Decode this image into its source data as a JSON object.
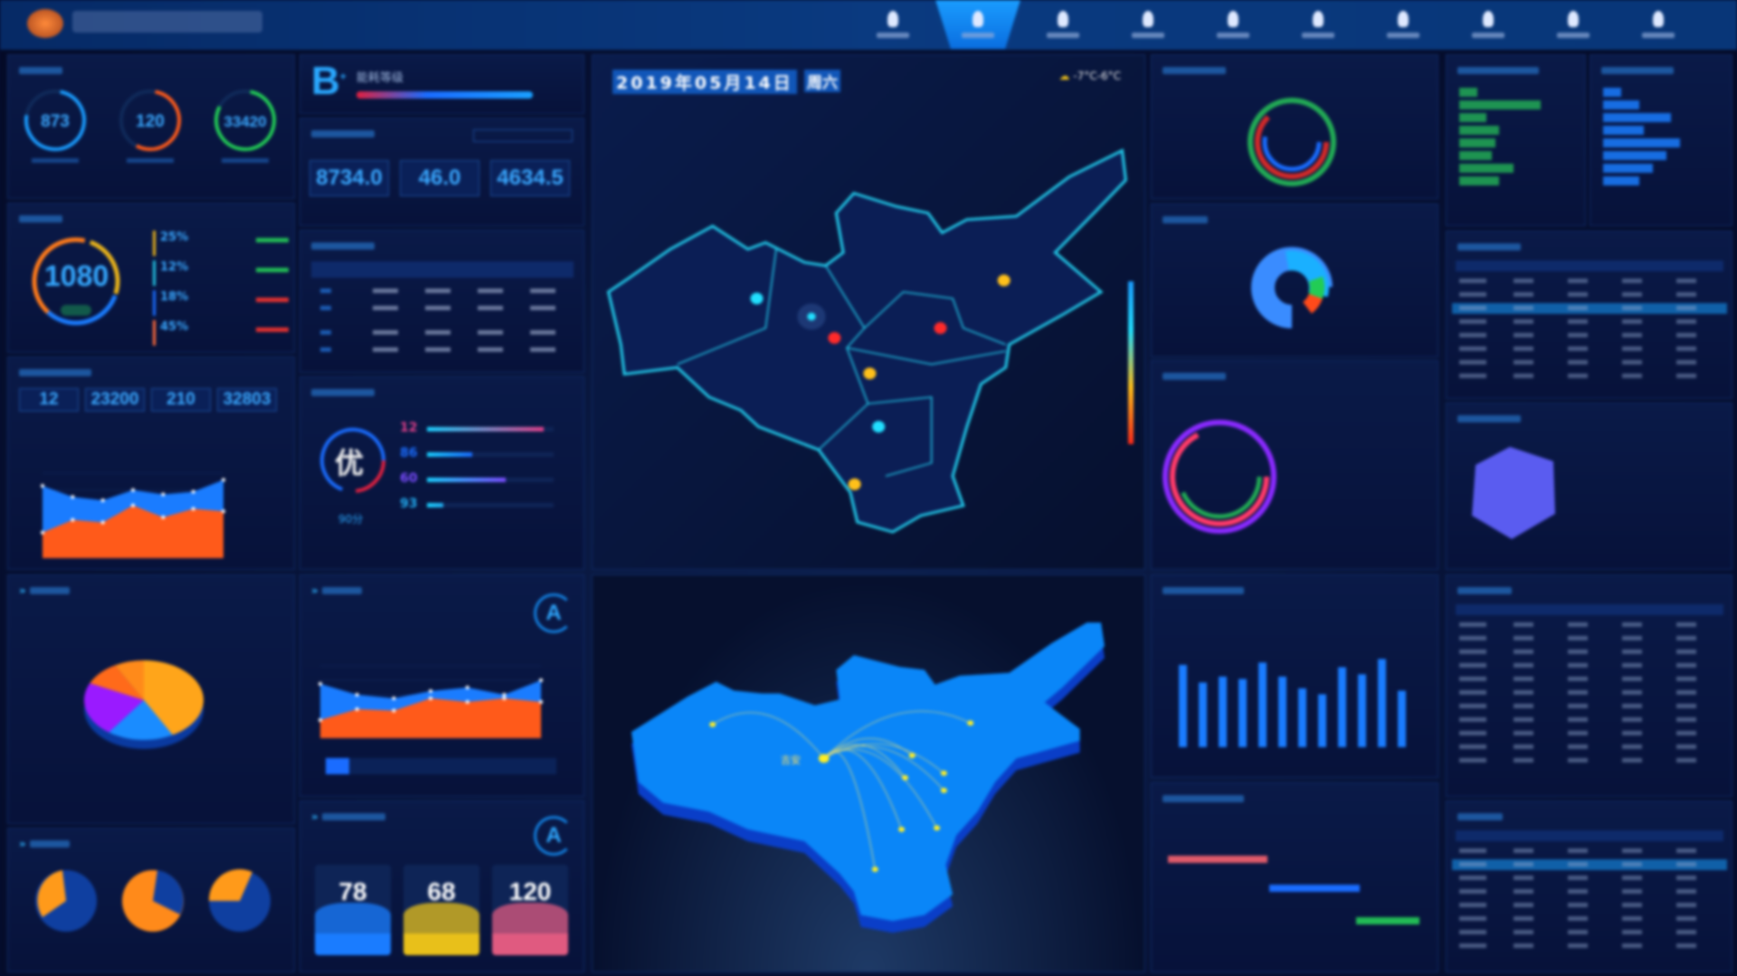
{
  "header": {
    "nav_items": 10,
    "active_index": 1
  },
  "gauges": [
    {
      "value": "873",
      "color": "#1a9cff",
      "fraction": 0.75
    },
    {
      "value": "120",
      "color": "#ff5a1a",
      "fraction": 0.55
    },
    {
      "value": "33420",
      "color": "#22cc55",
      "fraction": 0.8
    }
  ],
  "cost": {
    "value": "1080",
    "items": [
      {
        "pct": "25%",
        "color": "#e8b21a"
      },
      {
        "pct": "12%",
        "color": "#22c0e0"
      },
      {
        "pct": "18%",
        "color": "#1a6cff"
      },
      {
        "pct": "45%",
        "color": "#ff6a3a"
      }
    ]
  },
  "stats4": [
    "12",
    "23200",
    "210",
    "32803"
  ],
  "grade": {
    "letter": "B",
    "sup": "+",
    "label": "能耗等级"
  },
  "stats3": [
    "8734.0",
    "46.0",
    "4634.5"
  ],
  "eval": {
    "grade": "优",
    "score": "90分",
    "rows": [
      {
        "num": "12",
        "color": "#e0408a",
        "fraction": 0.92
      },
      {
        "num": "86",
        "color": "#1a6cff",
        "fraction": 0.36
      },
      {
        "num": "60",
        "color": "#7a4cff",
        "fraction": 0.62
      },
      {
        "num": "93",
        "color": "#22aaee",
        "fraction": 0.13
      }
    ]
  },
  "quality_badge": "A",
  "equipment": {
    "badge": "A",
    "cards": [
      {
        "value": "78",
        "color": "#1a7cff"
      },
      {
        "value": "68",
        "color": "#e8c01a"
      },
      {
        "value": "120",
        "color": "#e05a80"
      }
    ]
  },
  "map": {
    "date": "2019年05月14日",
    "weekday": "周六",
    "weather": "-7°C-6°C",
    "center_label": "吉安"
  },
  "chart_data": [
    {
      "type": "area",
      "x": [
        1,
        2,
        3,
        4,
        5,
        6,
        7
      ],
      "series": [
        {
          "color": "#1a7cff",
          "values": [
            85,
            72,
            68,
            80,
            75,
            78,
            92
          ]
        },
        {
          "color": "#ff5a1a",
          "values": [
            30,
            45,
            42,
            62,
            48,
            58,
            55
          ]
        }
      ],
      "ylim": [
        0,
        100
      ]
    },
    {
      "type": "area",
      "x": [
        1,
        2,
        3,
        4,
        5,
        6,
        7
      ],
      "series": [
        {
          "color": "#1a7cff",
          "values": [
            75,
            60,
            55,
            65,
            70,
            60,
            80
          ]
        },
        {
          "color": "#ff5a1a",
          "values": [
            25,
            40,
            38,
            55,
            50,
            55,
            50
          ]
        }
      ],
      "ylim": [
        0,
        100
      ]
    },
    {
      "type": "pie",
      "values": [
        42,
        18,
        22,
        10,
        8
      ],
      "colors": [
        "#ffa51a",
        "#1a8cff",
        "#9a1aff",
        "#ff6a1a",
        "#ff8a1a"
      ]
    },
    {
      "type": "bar",
      "values": [
        70,
        55,
        60,
        58,
        72,
        60,
        50,
        45,
        68,
        62,
        75,
        48
      ],
      "ylim": [
        0,
        100
      ],
      "color": "#1a7cff"
    }
  ]
}
